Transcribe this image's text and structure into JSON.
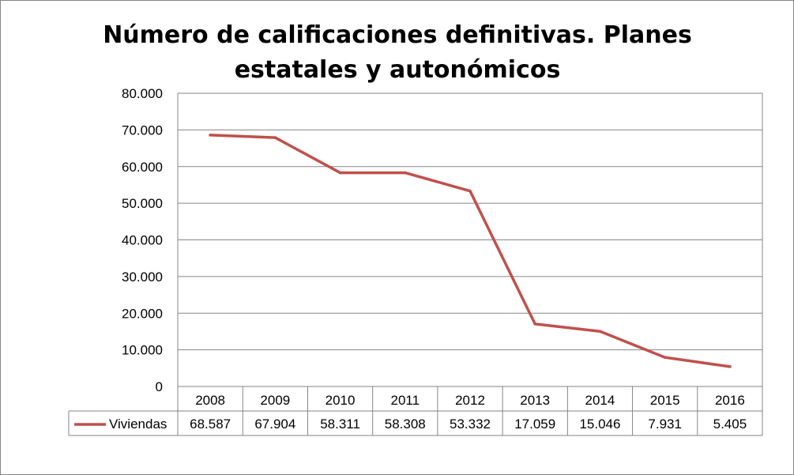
{
  "chart_data": {
    "type": "line",
    "title_lines": [
      "Número de calificaciones definitivas. Planes",
      "estatales y autonómicos"
    ],
    "categories": [
      "2008",
      "2009",
      "2010",
      "2011",
      "2012",
      "2013",
      "2014",
      "2015",
      "2016"
    ],
    "series": [
      {
        "name": "Viviendas",
        "color": "#c0504d",
        "values": [
          68587,
          67904,
          58311,
          58308,
          53332,
          17059,
          15046,
          7931,
          5405
        ],
        "value_labels": [
          "68.587",
          "67.904",
          "58.311",
          "58.308",
          "53.332",
          "17.059",
          "15.046",
          "7.931",
          "5.405"
        ]
      }
    ],
    "ylim": [
      0,
      80000
    ],
    "y_ticks": [
      {
        "value": 0,
        "label": "0"
      },
      {
        "value": 10000,
        "label": "10.000"
      },
      {
        "value": 20000,
        "label": "20.000"
      },
      {
        "value": 30000,
        "label": "30.000"
      },
      {
        "value": 40000,
        "label": "40.000"
      },
      {
        "value": 50000,
        "label": "50.000"
      },
      {
        "value": 60000,
        "label": "60.000"
      },
      {
        "value": 70000,
        "label": "70.000"
      },
      {
        "value": 80000,
        "label": "80.000"
      }
    ],
    "grid": true,
    "data_table": true,
    "legend": "data-table"
  }
}
